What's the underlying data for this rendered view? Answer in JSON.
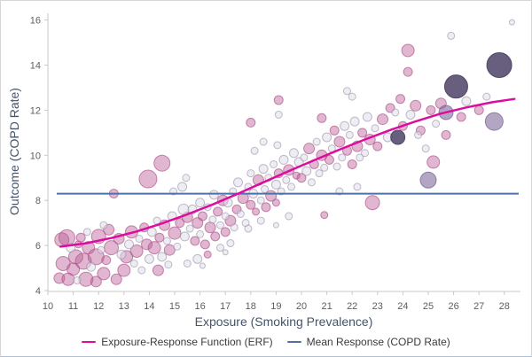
{
  "figure": {
    "x_axis": {
      "title": "Exposure (Smoking Prevalence)",
      "ticks": [
        10,
        11,
        12,
        13,
        14,
        15,
        16,
        17,
        18,
        19,
        20,
        21,
        22,
        23,
        24,
        25,
        26,
        27,
        28
      ],
      "min": 10,
      "max": 28.65
    },
    "y_axis": {
      "title": "Outcome (COPD Rate)",
      "ticks": [
        4,
        6,
        8,
        10,
        12,
        14,
        16
      ],
      "min": 4,
      "max": 16
    },
    "legend": [
      {
        "label": "Exposure-Response Function (ERF)",
        "color": "#dc0d9e"
      },
      {
        "label": "Mean Response (COPD Rate)",
        "color": "#4e72a6"
      }
    ],
    "colors": {
      "erf_line": "#dc0d9e",
      "mean_line": "#4e72a6",
      "axis_line": "#c8c8c8",
      "tick_label": "#605e5c",
      "axis_title": "#44546a",
      "legend_text": "#3b3a39"
    }
  },
  "chart_data": {
    "type": "scatter",
    "title": "",
    "xlabel": "Exposure (Smoking Prevalence)",
    "ylabel": "Outcome (COPD Rate)",
    "xlim": [
      10,
      28.65
    ],
    "ylim": [
      4,
      16
    ],
    "grid": false,
    "legend_position": "bottom",
    "mean_response": 8.3,
    "erf_curve": [
      [
        10.5,
        5.95
      ],
      [
        11.5,
        6.1
      ],
      [
        12.5,
        6.33
      ],
      [
        13.5,
        6.62
      ],
      [
        14.5,
        6.98
      ],
      [
        15.5,
        7.38
      ],
      [
        16.5,
        7.82
      ],
      [
        17.5,
        8.3
      ],
      [
        18.5,
        8.8
      ],
      [
        19.5,
        9.3
      ],
      [
        20.5,
        9.78
      ],
      [
        21.5,
        10.25
      ],
      [
        22.5,
        10.7
      ],
      [
        23.5,
        11.12
      ],
      [
        24.5,
        11.5
      ],
      [
        25.5,
        11.85
      ],
      [
        26.5,
        12.12
      ],
      [
        27.5,
        12.35
      ],
      [
        28.4,
        12.5
      ]
    ],
    "series": [
      {
        "name": "observations-pink",
        "fill": "rgba(186,94,150,0.45)",
        "stroke": "rgba(170,78,134,0.65)",
        "points": [
          [
            10.45,
            4.55,
            6
          ],
          [
            10.6,
            5.2,
            8
          ],
          [
            10.55,
            6.25,
            8
          ],
          [
            10.75,
            6.35,
            9
          ],
          [
            10.8,
            4.5,
            7
          ],
          [
            11.0,
            4.95,
            7
          ],
          [
            11.1,
            5.5,
            8
          ],
          [
            11.3,
            6.35,
            5
          ],
          [
            11.2,
            6.05,
            4
          ],
          [
            11.4,
            5.3,
            9
          ],
          [
            11.5,
            4.5,
            8
          ],
          [
            11.6,
            5.9,
            7
          ],
          [
            11.9,
            5.5,
            9
          ],
          [
            11.9,
            4.4,
            6
          ],
          [
            12.0,
            6.4,
            8
          ],
          [
            12.2,
            4.75,
            7
          ],
          [
            12.3,
            5.35,
            5
          ],
          [
            12.4,
            6.7,
            6
          ],
          [
            12.6,
            8.3,
            5
          ],
          [
            12.5,
            5.9,
            8
          ],
          [
            12.7,
            4.5,
            6
          ],
          [
            13.0,
            4.9,
            7
          ],
          [
            12.8,
            6.3,
            6
          ],
          [
            13.1,
            5.5,
            7
          ],
          [
            13.3,
            6.6,
            7
          ],
          [
            13.5,
            5.75,
            7
          ],
          [
            13.8,
            6.8,
            5
          ],
          [
            13.9,
            6.05,
            6
          ],
          [
            13.95,
            8.95,
            10
          ],
          [
            14.5,
            9.65,
            9
          ],
          [
            14.2,
            5.9,
            7
          ],
          [
            14.4,
            6.35,
            5
          ],
          [
            14.6,
            6.9,
            6
          ],
          [
            14.8,
            5.8,
            6
          ],
          [
            15.0,
            6.55,
            7
          ],
          [
            14.35,
            4.9,
            6
          ],
          [
            16.3,
            5.6,
            4
          ],
          [
            15.2,
            7.0,
            5
          ],
          [
            15.5,
            7.25,
            6
          ],
          [
            15.8,
            6.2,
            5
          ],
          [
            15.9,
            7.0,
            6
          ],
          [
            16.1,
            7.3,
            5
          ],
          [
            16.2,
            6.05,
            5
          ],
          [
            16.4,
            6.8,
            6
          ],
          [
            16.6,
            6.4,
            5
          ],
          [
            16.7,
            7.5,
            5
          ],
          [
            16.9,
            8.0,
            6
          ],
          [
            17.0,
            6.6,
            5
          ],
          [
            17.2,
            7.1,
            6
          ],
          [
            17.45,
            7.6,
            5
          ],
          [
            17.7,
            8.1,
            6
          ],
          [
            18.0,
            7.8,
            5
          ],
          [
            18.2,
            7.5,
            4
          ],
          [
            18.3,
            8.9,
            6
          ],
          [
            18.6,
            7.7,
            5
          ],
          [
            18.8,
            8.2,
            6
          ],
          [
            19.0,
            7.9,
            4
          ],
          [
            19.1,
            9.2,
            5
          ],
          [
            19.5,
            9.35,
            6
          ],
          [
            19.8,
            9.1,
            4
          ],
          [
            18.0,
            11.45,
            5
          ],
          [
            19.1,
            12.45,
            5
          ],
          [
            20.8,
            11.65,
            5
          ],
          [
            20.9,
            7.35,
            4
          ],
          [
            20.0,
            9.0,
            5
          ],
          [
            20.3,
            10.3,
            6
          ],
          [
            20.5,
            9.6,
            5
          ],
          [
            20.8,
            10.0,
            6
          ],
          [
            21.1,
            9.8,
            5
          ],
          [
            21.3,
            11.1,
            5
          ],
          [
            21.5,
            10.6,
            6
          ],
          [
            21.8,
            10.2,
            5
          ],
          [
            22.0,
            9.6,
            5
          ],
          [
            22.2,
            10.4,
            6
          ],
          [
            22.4,
            11.0,
            5
          ],
          [
            22.7,
            10.7,
            6
          ],
          [
            22.8,
            7.9,
            8
          ],
          [
            23.0,
            10.4,
            5
          ],
          [
            23.2,
            11.6,
            6
          ],
          [
            23.5,
            12.1,
            5
          ],
          [
            23.9,
            12.5,
            5
          ],
          [
            24.0,
            11.3,
            5
          ],
          [
            24.2,
            14.65,
            7
          ],
          [
            24.2,
            13.7,
            5
          ],
          [
            24.5,
            12.2,
            6
          ],
          [
            24.7,
            11.1,
            5
          ],
          [
            25.1,
            12.0,
            5
          ],
          [
            25.2,
            9.7,
            7
          ],
          [
            25.5,
            12.3,
            6
          ],
          [
            25.7,
            10.9,
            5
          ],
          [
            26.3,
            11.7,
            5
          ],
          [
            27.0,
            12.0,
            5
          ]
        ]
      },
      {
        "name": "observations-gray",
        "fill": "rgba(225,222,235,0.55)",
        "stroke": "rgba(150,144,163,0.6)",
        "points": [
          [
            10.9,
            5.9,
            5
          ],
          [
            11.15,
            4.45,
            4
          ],
          [
            11.55,
            6.6,
            4
          ],
          [
            11.7,
            5.05,
            5
          ],
          [
            12.1,
            5.8,
            4
          ],
          [
            12.2,
            6.9,
            4
          ],
          [
            12.9,
            5.6,
            5
          ],
          [
            13.2,
            6.05,
            5
          ],
          [
            13.4,
            5.2,
            4
          ],
          [
            13.6,
            6.3,
            4
          ],
          [
            13.7,
            4.9,
            4
          ],
          [
            14.0,
            5.4,
            5
          ],
          [
            14.1,
            6.6,
            5
          ],
          [
            14.3,
            7.1,
            4
          ],
          [
            14.5,
            5.5,
            5
          ],
          [
            14.7,
            6.2,
            4
          ],
          [
            14.9,
            7.3,
            5
          ],
          [
            14.95,
            8.4,
            4
          ],
          [
            15.1,
            5.95,
            4
          ],
          [
            14.75,
            5.15,
            4
          ],
          [
            15.3,
            8.6,
            5
          ],
          [
            15.35,
            7.6,
            6
          ],
          [
            15.45,
            9.0,
            4
          ],
          [
            15.4,
            6.4,
            5
          ],
          [
            15.6,
            6.75,
            4
          ],
          [
            15.7,
            7.6,
            5
          ],
          [
            16.0,
            6.5,
            4
          ],
          [
            16.0,
            7.9,
            5
          ],
          [
            16.3,
            7.7,
            4
          ],
          [
            16.5,
            7.15,
            4
          ],
          [
            16.55,
            8.25,
            5
          ],
          [
            16.8,
            6.9,
            4
          ],
          [
            17.0,
            7.3,
            4
          ],
          [
            17.1,
            7.9,
            5
          ],
          [
            17.3,
            8.4,
            4
          ],
          [
            17.35,
            6.8,
            4
          ],
          [
            15.9,
            5.4,
            5
          ],
          [
            16.8,
            5.9,
            4
          ],
          [
            17.2,
            6.1,
            4
          ],
          [
            15.5,
            5.2,
            4
          ],
          [
            16.1,
            5.1,
            3
          ],
          [
            17.0,
            5.7,
            3
          ],
          [
            17.5,
            8.8,
            5
          ],
          [
            17.6,
            7.4,
            4
          ],
          [
            17.8,
            7.0,
            4
          ],
          [
            17.9,
            8.6,
            4
          ],
          [
            18.0,
            9.2,
            4
          ],
          [
            18.1,
            8.3,
            5
          ],
          [
            18.4,
            8.0,
            4
          ],
          [
            18.5,
            9.4,
            5
          ],
          [
            18.55,
            8.5,
            4
          ],
          [
            18.7,
            9.0,
            4
          ],
          [
            18.9,
            9.6,
            4
          ],
          [
            19.0,
            8.7,
            5
          ],
          [
            19.2,
            8.4,
            4
          ],
          [
            19.3,
            9.8,
            5
          ],
          [
            19.4,
            8.9,
            4
          ],
          [
            19.6,
            8.6,
            4
          ],
          [
            19.7,
            10.1,
            5
          ],
          [
            19.9,
            9.7,
            5
          ],
          [
            18.15,
            10.2,
            4
          ],
          [
            18.5,
            10.6,
            4
          ],
          [
            19.05,
            10.45,
            4
          ],
          [
            17.9,
            6.75,
            4
          ],
          [
            18.4,
            7.1,
            4
          ],
          [
            19.5,
            7.3,
            4
          ],
          [
            19.0,
            6.9,
            3
          ],
          [
            19.1,
            11.8,
            4
          ],
          [
            21.8,
            12.85,
            4
          ],
          [
            22.0,
            12.6,
            4
          ],
          [
            20.1,
            9.9,
            4
          ],
          [
            20.2,
            9.3,
            5
          ],
          [
            20.4,
            8.8,
            4
          ],
          [
            20.6,
            10.6,
            4
          ],
          [
            20.7,
            9.2,
            4
          ],
          [
            20.9,
            9.45,
            4
          ],
          [
            21.0,
            10.8,
            5
          ],
          [
            21.2,
            10.3,
            4
          ],
          [
            21.4,
            9.5,
            4
          ],
          [
            21.6,
            9.9,
            4
          ],
          [
            21.7,
            11.3,
            5
          ],
          [
            21.9,
            10.9,
            4
          ],
          [
            22.1,
            11.5,
            5
          ],
          [
            22.3,
            9.9,
            4
          ],
          [
            22.5,
            10.1,
            4
          ],
          [
            22.6,
            11.7,
            5
          ],
          [
            22.9,
            11.2,
            4
          ],
          [
            21.5,
            8.4,
            4
          ],
          [
            22.2,
            8.6,
            4
          ],
          [
            23.4,
            10.8,
            5
          ],
          [
            23.7,
            11.9,
            4
          ],
          [
            24.3,
            11.8,
            5
          ],
          [
            24.6,
            10.9,
            4
          ],
          [
            25.3,
            11.4,
            4
          ],
          [
            25.9,
            15.3,
            4
          ],
          [
            26.5,
            12.4,
            5
          ],
          [
            27.3,
            12.6,
            4
          ],
          [
            28.3,
            15.9,
            3
          ],
          [
            24.9,
            10.3,
            4
          ]
        ]
      },
      {
        "name": "observations-medium-purple",
        "fill": "rgba(128,106,153,0.6)",
        "stroke": "rgba(110,90,140,0.7)",
        "points": [
          [
            27.6,
            11.5,
            10
          ],
          [
            25.0,
            8.9,
            9
          ],
          [
            25.7,
            11.9,
            8
          ]
        ]
      },
      {
        "name": "observations-dark-purple",
        "fill": "rgba(88,78,112,0.9)",
        "stroke": "rgba(75,66,98,0.95)",
        "points": [
          [
            27.8,
            14.0,
            14
          ],
          [
            26.1,
            13.05,
            13
          ],
          [
            23.8,
            10.8,
            8
          ]
        ]
      }
    ]
  }
}
